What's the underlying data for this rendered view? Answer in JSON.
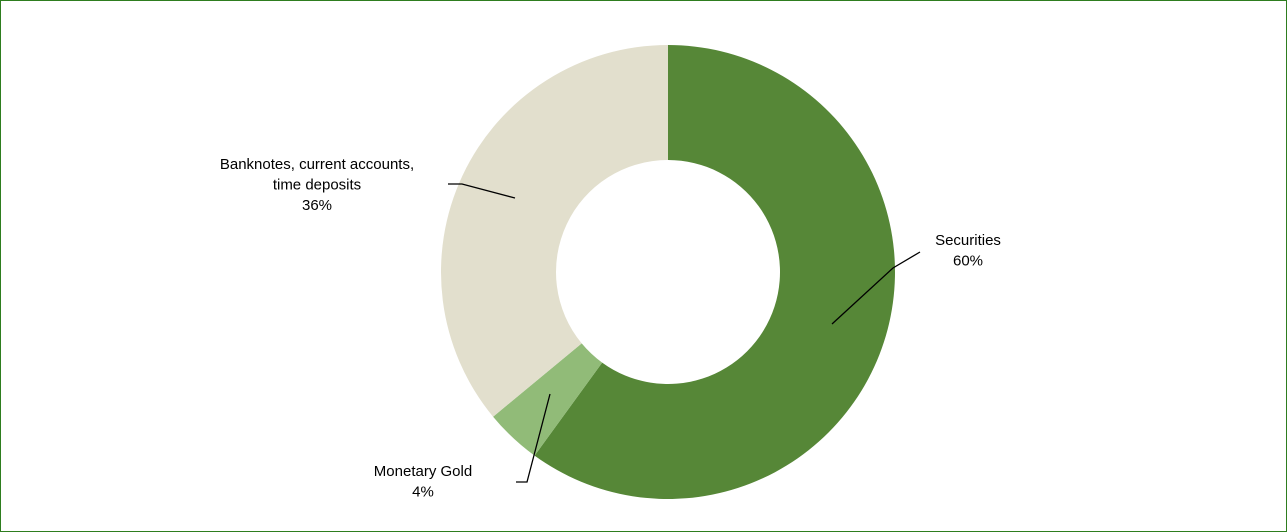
{
  "chart_data": {
    "type": "pie",
    "style": "donut",
    "slices": [
      {
        "label_lines": [
          "Securities"
        ],
        "value": 60,
        "value_label": "60%",
        "color": "#568737"
      },
      {
        "label_lines": [
          "Monetary Gold"
        ],
        "value": 4,
        "value_label": "4%",
        "color": "#91bb78"
      },
      {
        "label_lines": [
          "Banknotes, current accounts,",
          "time deposits"
        ],
        "value": 36,
        "value_label": "36%",
        "color": "#e2dfcd"
      }
    ],
    "start": "12 o'clock",
    "direction": "clockwise",
    "legend": "none"
  }
}
